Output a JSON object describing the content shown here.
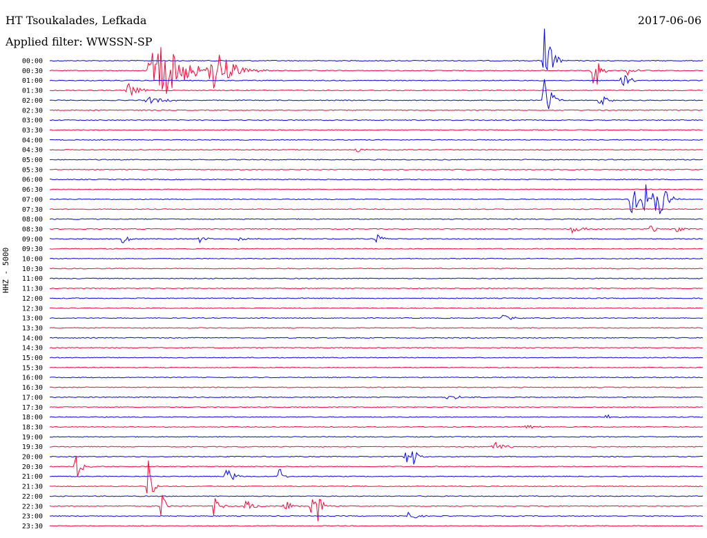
{
  "header": {
    "station": "HT Tsoukalades, Lefkada",
    "date": "2017-06-06",
    "filter": "Applied filter: WWSSN-SP",
    "channel_label": "HHZ - 5000"
  },
  "colors": {
    "odd": "#0000ff",
    "even": "#ff0033",
    "text": "#000000",
    "background": "#ffffff"
  },
  "chart_data": {
    "type": "line",
    "title": "HT Tsoukalades, Lefkada",
    "xlabel": "",
    "ylabel": "HHZ - 5000",
    "grid": false,
    "legend": "none",
    "tick_labels": [
      "00:00",
      "00:30",
      "01:00",
      "01:30",
      "02:00",
      "02:30",
      "03:00",
      "03:30",
      "04:00",
      "04:30",
      "05:00",
      "05:30",
      "06:00",
      "06:30",
      "07:00",
      "07:30",
      "08:00",
      "08:30",
      "09:00",
      "09:30",
      "10:00",
      "10:30",
      "11:00",
      "11:30",
      "12:00",
      "12:30",
      "13:00",
      "13:30",
      "14:00",
      "14:30",
      "15:00",
      "15:30",
      "16:00",
      "16:30",
      "17:00",
      "17:30",
      "18:00",
      "18:30",
      "19:00",
      "19:30",
      "20:00",
      "20:30",
      "21:00",
      "21:30",
      "22:00",
      "22:30",
      "23:00",
      "23:30"
    ],
    "row_minutes": 30,
    "events": [
      {
        "row": 1,
        "t": 0.16,
        "amp": 60,
        "dur": 0.04
      },
      {
        "row": 1,
        "t": 0.25,
        "amp": 35,
        "dur": 0.03
      },
      {
        "row": 0,
        "t": 0.757,
        "amp": 70,
        "dur": 0.01
      },
      {
        "row": 1,
        "t": 0.83,
        "amp": 85,
        "dur": 0.008
      },
      {
        "row": 2,
        "t": 0.875,
        "amp": 18,
        "dur": 0.01
      },
      {
        "row": 1,
        "t": 0.885,
        "amp": 10,
        "dur": 0.01
      },
      {
        "row": 3,
        "t": 0.12,
        "amp": 12,
        "dur": 0.015
      },
      {
        "row": 4,
        "t": 0.15,
        "amp": 5,
        "dur": 0.03
      },
      {
        "row": 4,
        "t": 0.842,
        "amp": 14,
        "dur": 0.01
      },
      {
        "row": 4,
        "t": 0.757,
        "amp": 50,
        "dur": 0.01
      },
      {
        "row": 9,
        "t": 0.47,
        "amp": 4,
        "dur": 0.01
      },
      {
        "row": 14,
        "t": 0.89,
        "amp": 35,
        "dur": 0.01
      },
      {
        "row": 14,
        "t": 0.91,
        "amp": 30,
        "dur": 0.01
      },
      {
        "row": 14,
        "t": 0.925,
        "amp": 28,
        "dur": 0.01
      },
      {
        "row": 14,
        "t": 0.935,
        "amp": 40,
        "dur": 0.01
      },
      {
        "row": 17,
        "t": 0.8,
        "amp": 7,
        "dur": 0.015
      },
      {
        "row": 17,
        "t": 0.92,
        "amp": 8,
        "dur": 0.01
      },
      {
        "row": 17,
        "t": 0.96,
        "amp": 6,
        "dur": 0.01
      },
      {
        "row": 18,
        "t": 0.11,
        "amp": 9,
        "dur": 0.01
      },
      {
        "row": 18,
        "t": 0.23,
        "amp": 6,
        "dur": 0.01
      },
      {
        "row": 18,
        "t": 0.29,
        "amp": 7,
        "dur": 0.01
      },
      {
        "row": 18,
        "t": 0.5,
        "amp": 9,
        "dur": 0.01
      },
      {
        "row": 26,
        "t": 0.69,
        "amp": 5,
        "dur": 0.02
      },
      {
        "row": 34,
        "t": 0.61,
        "amp": 4,
        "dur": 0.02
      },
      {
        "row": 36,
        "t": 0.85,
        "amp": 5,
        "dur": 0.01
      },
      {
        "row": 37,
        "t": 0.73,
        "amp": 4,
        "dur": 0.015
      },
      {
        "row": 39,
        "t": 0.68,
        "amp": 7,
        "dur": 0.02
      },
      {
        "row": 40,
        "t": 0.545,
        "amp": 10,
        "dur": 0.01
      },
      {
        "row": 40,
        "t": 0.555,
        "amp": 14,
        "dur": 0.01
      },
      {
        "row": 41,
        "t": 0.04,
        "amp": 28,
        "dur": 0.008
      },
      {
        "row": 42,
        "t": 0.27,
        "amp": 14,
        "dur": 0.012
      },
      {
        "row": 43,
        "t": 0.15,
        "amp": 50,
        "dur": 0.006
      },
      {
        "row": 42,
        "t": 0.35,
        "amp": 22,
        "dur": 0.006
      },
      {
        "row": 45,
        "t": 0.25,
        "amp": 16,
        "dur": 0.01
      },
      {
        "row": 45,
        "t": 0.3,
        "amp": 14,
        "dur": 0.01
      },
      {
        "row": 45,
        "t": 0.36,
        "amp": 12,
        "dur": 0.01
      },
      {
        "row": 45,
        "t": 0.4,
        "amp": 14,
        "dur": 0.01
      },
      {
        "row": 45,
        "t": 0.41,
        "amp": 56,
        "dur": 0.005
      },
      {
        "row": 46,
        "t": 0.55,
        "amp": 12,
        "dur": 0.01
      },
      {
        "row": 45,
        "t": 0.17,
        "amp": 40,
        "dur": 0.006
      }
    ]
  }
}
